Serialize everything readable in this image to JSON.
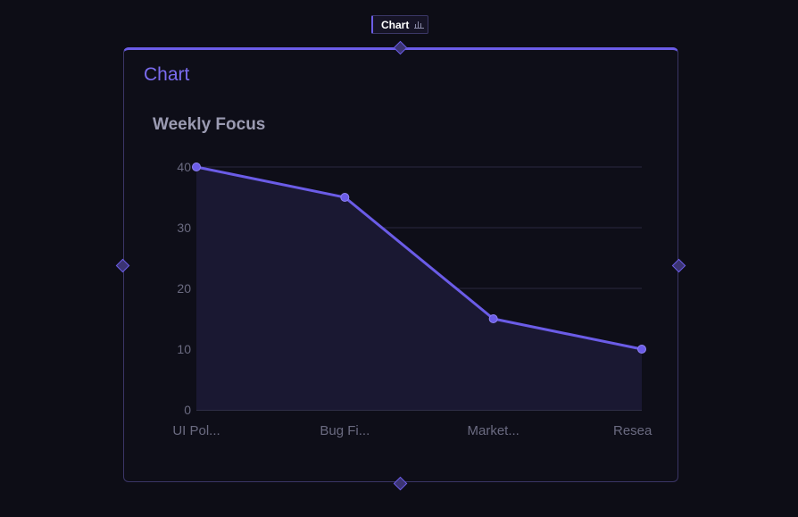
{
  "tag": {
    "label": "Chart",
    "icon": "bar-chart-icon"
  },
  "panel": {
    "title": "Chart"
  },
  "colors": {
    "accent": "#6b5ce7",
    "background": "#0d0d16",
    "grid": "#2a2840",
    "area_fill": "#1a1832"
  },
  "chart_data": {
    "type": "line",
    "title": "Weekly Focus",
    "categories": [
      "UI Pol...",
      "Bug Fi...",
      "Market...",
      "Resea"
    ],
    "values": [
      40,
      35,
      15,
      10
    ],
    "ylim": [
      0,
      40
    ],
    "yticks": [
      0,
      10,
      20,
      30,
      40
    ],
    "grid": true,
    "area": true
  }
}
